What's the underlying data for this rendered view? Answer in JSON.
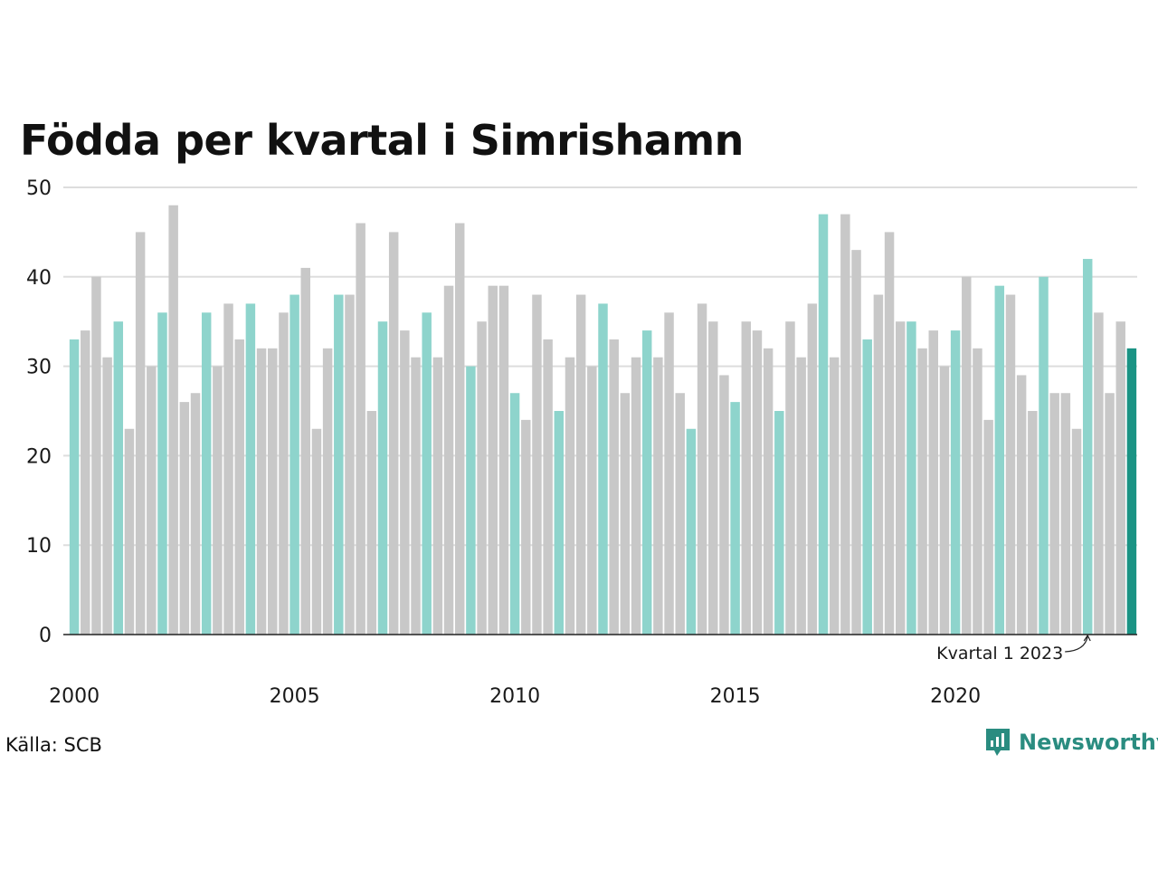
{
  "title": "Födda per kvartal i Simrishamn",
  "source": "Källa: SCB",
  "brand": "Newsworthy",
  "colors": {
    "q1": "#8ed4cc",
    "other": "#c8c8c8",
    "latest": "#1a9384",
    "grid": "#dddddd",
    "axis": "#222222",
    "brand": "#2a8c80"
  },
  "chart_data": {
    "type": "bar",
    "x_start": "2000 Q1",
    "period": "quarter",
    "x_ticks": [
      "2000",
      "2005",
      "2010",
      "2015",
      "2020"
    ],
    "y_ticks": [
      0,
      10,
      20,
      30,
      40,
      50
    ],
    "ylim": [
      0,
      50
    ],
    "grid": true,
    "annotation": {
      "text": "Kvartal 1 2023",
      "target_index": 92
    },
    "values": [
      33,
      34,
      40,
      31,
      35,
      23,
      45,
      30,
      36,
      48,
      26,
      27,
      36,
      30,
      37,
      33,
      37,
      32,
      32,
      36,
      38,
      41,
      23,
      32,
      38,
      38,
      46,
      25,
      35,
      45,
      34,
      31,
      36,
      31,
      39,
      46,
      30,
      35,
      39,
      39,
      27,
      24,
      38,
      33,
      25,
      31,
      38,
      30,
      37,
      33,
      27,
      31,
      34,
      31,
      36,
      27,
      23,
      37,
      35,
      29,
      26,
      35,
      34,
      32,
      25,
      35,
      31,
      37,
      47,
      31,
      47,
      43,
      33,
      38,
      45,
      35,
      35,
      32,
      34,
      30,
      34,
      40,
      32,
      24,
      39,
      38,
      29,
      25,
      40,
      27,
      27,
      23,
      42,
      36,
      27,
      35,
      32
    ]
  }
}
